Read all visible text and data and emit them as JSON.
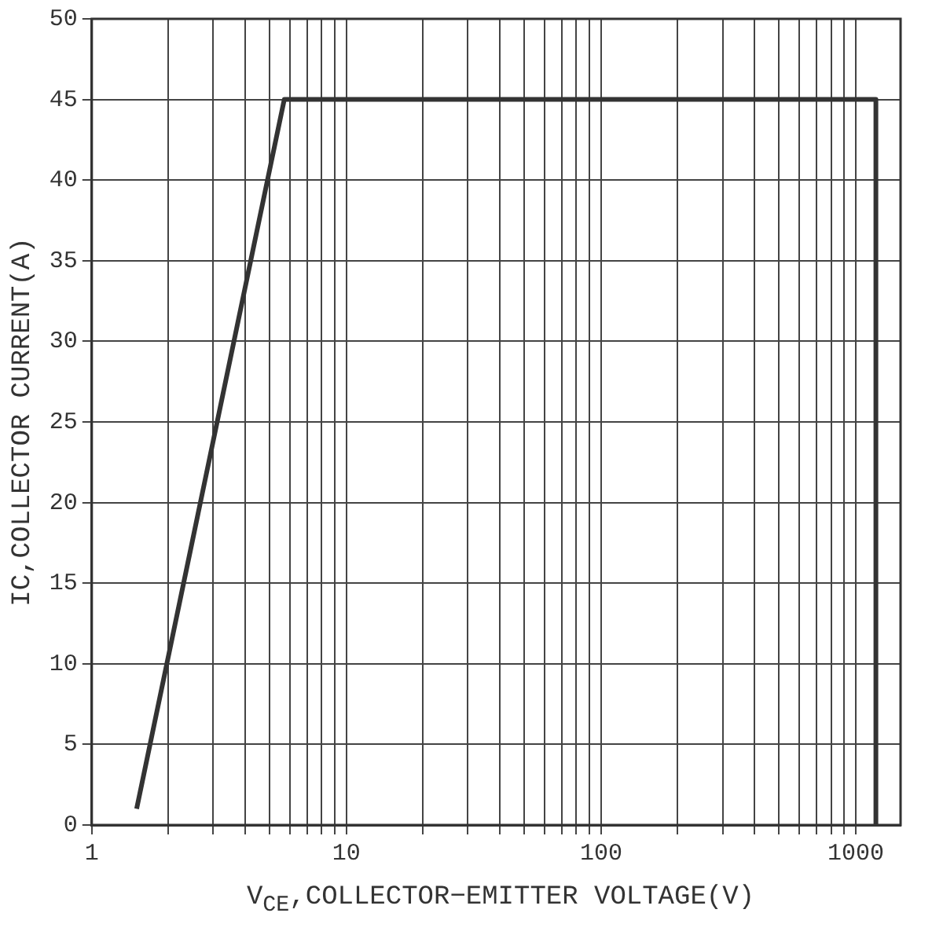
{
  "chart_data": {
    "type": "line",
    "xlabel": "V$_{CE}$,COLLECTOR−EMITTER VOLTAGE(V)",
    "ylabel": "IC,COLLECTOR CURRENT(A)",
    "x": [
      1.5,
      5.7,
      1200,
      1200
    ],
    "series": [
      {
        "color": "#333333",
        "values": [
          1,
          45,
          45,
          0
        ]
      }
    ],
    "log": "x",
    "xlim": [
      1,
      1500
    ],
    "xticks": [
      1,
      {
        "value": 2,
        "label": null
      },
      {
        "value": 3,
        "label": null
      },
      {
        "value": 4,
        "label": null
      },
      {
        "value": 5,
        "label": null
      },
      {
        "value": 6,
        "label": null
      },
      {
        "value": 7,
        "label": null
      },
      {
        "value": 8,
        "label": null
      },
      {
        "value": 9,
        "label": null
      },
      10,
      {
        "value": 20,
        "label": null
      },
      {
        "value": 30,
        "label": null
      },
      {
        "value": 40,
        "label": null
      },
      {
        "value": 50,
        "label": null
      },
      {
        "value": 60,
        "label": null
      },
      {
        "value": 70,
        "label": null
      },
      {
        "value": 80,
        "label": null
      },
      {
        "value": 90,
        "label": null
      },
      100,
      {
        "value": 200,
        "label": null
      },
      {
        "value": 300,
        "label": null
      },
      {
        "value": 400,
        "label": null
      },
      {
        "value": 500,
        "label": null
      },
      {
        "value": 600,
        "label": null
      },
      {
        "value": 700,
        "label": null
      },
      {
        "value": 800,
        "label": null
      },
      {
        "value": 900,
        "label": null
      },
      1000
    ],
    "ylim": [
      0,
      50
    ],
    "yticks": [
      0,
      5,
      10,
      15,
      20,
      25,
      30,
      35,
      40,
      45,
      50
    ],
    "grid": true,
    "legend": false,
    "marker": "none",
    "line_style": "solid"
  }
}
